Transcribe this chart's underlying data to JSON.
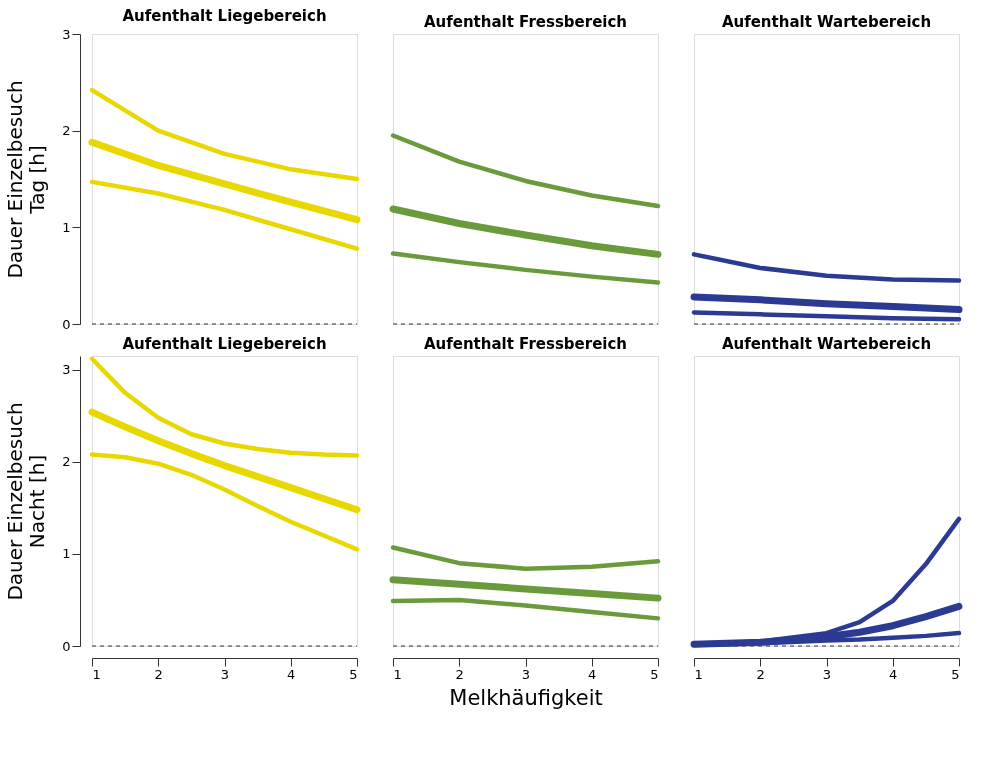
{
  "chart_data": [
    {
      "type": "line",
      "title": "Aufenthalt Liegebereich",
      "ylabel": "Dauer Einzelbesuch\nTag [h]",
      "x": [
        1,
        2,
        3,
        4,
        5
      ],
      "xlim": [
        1,
        5
      ],
      "ylim": [
        0,
        3
      ],
      "yticks": [
        0,
        1,
        2,
        3
      ],
      "tick_labels": "y",
      "grid": false,
      "ref_lines": [
        {
          "axis": "y",
          "value": 0,
          "line_style": "dashed",
          "color": "#333333"
        }
      ],
      "series": [
        {
          "color": "#e8d800",
          "values": [
            2.42,
            2.0,
            1.76,
            1.6,
            1.5
          ]
        },
        {
          "color": "#e8d800",
          "values": [
            1.88,
            1.64,
            1.45,
            1.26,
            1.08
          ]
        },
        {
          "color": "#e8d800",
          "values": [
            1.47,
            1.35,
            1.18,
            0.98,
            0.78
          ]
        }
      ]
    },
    {
      "type": "line",
      "title": "Aufenthalt Fressbereich",
      "x": [
        1,
        2,
        3,
        4,
        5
      ],
      "xlim": [
        1,
        5
      ],
      "ylim": [
        0,
        3
      ],
      "tick_labels": false,
      "grid": false,
      "ref_lines": [
        {
          "axis": "y",
          "value": 0,
          "line_style": "dashed",
          "color": "#333333"
        }
      ],
      "series": [
        {
          "color": "#6b9a3c",
          "values": [
            1.95,
            1.68,
            1.48,
            1.33,
            1.22
          ]
        },
        {
          "color": "#6b9a3c",
          "values": [
            1.19,
            1.04,
            0.92,
            0.81,
            0.72
          ]
        },
        {
          "color": "#6b9a3c",
          "values": [
            0.73,
            0.64,
            0.56,
            0.49,
            0.43
          ]
        }
      ]
    },
    {
      "type": "line",
      "title": "Aufenthalt Wartebereich",
      "x": [
        1,
        2,
        3,
        4,
        5
      ],
      "xlim": [
        1,
        5
      ],
      "ylim": [
        0,
        3
      ],
      "tick_labels": false,
      "grid": false,
      "ref_lines": [
        {
          "axis": "y",
          "value": 0,
          "line_style": "dashed",
          "color": "#333333"
        }
      ],
      "series": [
        {
          "color": "#2b3a92",
          "values": [
            0.72,
            0.58,
            0.5,
            0.46,
            0.45
          ]
        },
        {
          "color": "#2b3a92",
          "values": [
            0.28,
            0.25,
            0.21,
            0.18,
            0.15
          ]
        },
        {
          "color": "#2b3a92",
          "values": [
            0.12,
            0.1,
            0.08,
            0.06,
            0.05
          ]
        }
      ]
    },
    {
      "type": "line",
      "title": "Aufenthalt Liegebereich",
      "ylabel": "Dauer Einzelbesuch\nNacht [h]",
      "x": [
        1,
        1.5,
        2,
        2.5,
        3,
        3.5,
        4,
        4.5,
        5
      ],
      "xlim": [
        1,
        5
      ],
      "xticks": [
        1,
        2,
        3,
        4,
        5
      ],
      "ylim": [
        0,
        3.15
      ],
      "yticks": [
        0,
        1,
        2,
        3
      ],
      "grid": false,
      "ref_lines": [
        {
          "axis": "y",
          "value": 0,
          "line_style": "dashed",
          "color": "#333333"
        }
      ],
      "series": [
        {
          "color": "#e8d800",
          "values": [
            3.12,
            2.75,
            2.48,
            2.3,
            2.2,
            2.14,
            2.1,
            2.08,
            2.07
          ]
        },
        {
          "color": "#e8d800",
          "values": [
            2.54,
            2.38,
            2.23,
            2.09,
            1.96,
            1.84,
            1.72,
            1.6,
            1.48
          ]
        },
        {
          "color": "#e8d800",
          "values": [
            2.08,
            2.05,
            1.98,
            1.86,
            1.7,
            1.52,
            1.35,
            1.2,
            1.05
          ]
        }
      ]
    },
    {
      "type": "line",
      "title": "Aufenthalt Fressbereich",
      "xlabel": "Melkhäufigkeit",
      "x": [
        1,
        2,
        3,
        4,
        5
      ],
      "xlim": [
        1,
        5
      ],
      "xticks": [
        1,
        2,
        3,
        4,
        5
      ],
      "ylim": [
        0,
        3.15
      ],
      "tick_labels": "x",
      "grid": false,
      "ref_lines": [
        {
          "axis": "y",
          "value": 0,
          "line_style": "dashed",
          "color": "#333333"
        }
      ],
      "series": [
        {
          "color": "#6b9a3c",
          "values": [
            1.07,
            0.9,
            0.84,
            0.86,
            0.92
          ]
        },
        {
          "color": "#6b9a3c",
          "values": [
            0.72,
            0.67,
            0.62,
            0.57,
            0.52
          ]
        },
        {
          "color": "#6b9a3c",
          "values": [
            0.49,
            0.5,
            0.44,
            0.37,
            0.3
          ]
        }
      ]
    },
    {
      "type": "line",
      "title": "Aufenthalt Wartebereich",
      "x": [
        1,
        2,
        3,
        3.5,
        4,
        4.5,
        5
      ],
      "xlim": [
        1,
        5
      ],
      "xticks": [
        1,
        2,
        3,
        4,
        5
      ],
      "ylim": [
        0,
        3.15
      ],
      "tick_labels": "x",
      "grid": false,
      "ref_lines": [
        {
          "axis": "y",
          "value": 0,
          "line_style": "dashed",
          "color": "#333333"
        }
      ],
      "series": [
        {
          "color": "#2b3a92",
          "values": [
            0.02,
            0.05,
            0.14,
            0.26,
            0.49,
            0.89,
            1.38
          ]
        },
        {
          "color": "#2b3a92",
          "values": [
            0.02,
            0.04,
            0.1,
            0.15,
            0.22,
            0.32,
            0.43
          ]
        },
        {
          "color": "#2b3a92",
          "values": [
            0.01,
            0.03,
            0.06,
            0.07,
            0.09,
            0.11,
            0.14
          ]
        }
      ]
    }
  ]
}
